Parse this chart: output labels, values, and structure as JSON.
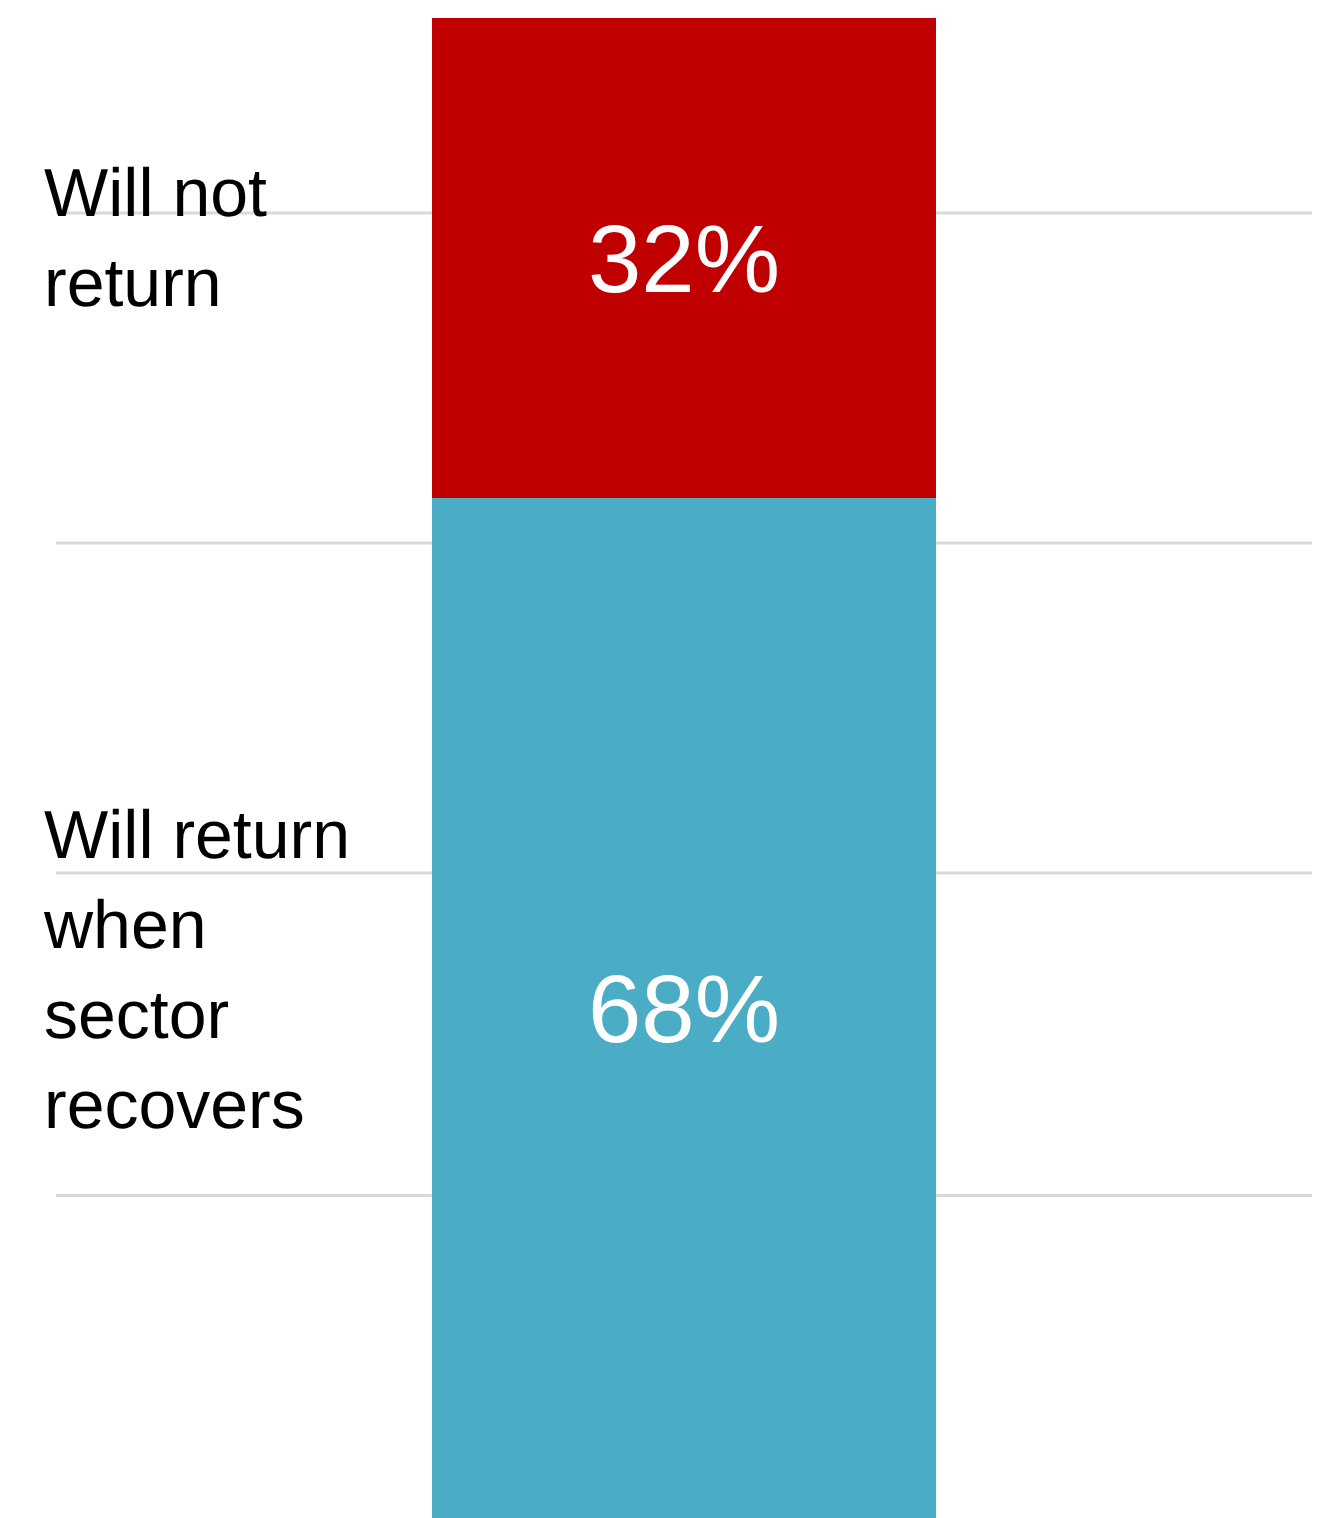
{
  "chart_data": {
    "type": "bar",
    "stacked": true,
    "categories": [
      null
    ],
    "ylim": [
      0,
      100
    ],
    "yticks": [
      {
        "value": 21.5,
        "label": null
      },
      {
        "value": 43,
        "label": null
      },
      {
        "value": 65,
        "label": null
      },
      {
        "value": 87,
        "label": null
      }
    ],
    "grid": "y",
    "legend": "left",
    "tick_labels": false,
    "series": [
      {
        "name": "Will return when sector recovers",
        "color": "#4bacc6",
        "values": [
          68
        ],
        "value_labels": [
          "68%"
        ]
      },
      {
        "name": "Will not return",
        "color": "#c00000",
        "values": [
          32
        ],
        "value_labels": [
          "32%"
        ]
      }
    ]
  }
}
